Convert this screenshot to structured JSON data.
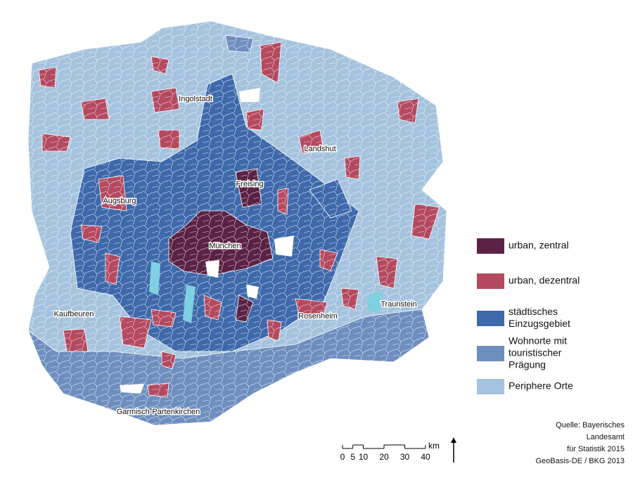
{
  "map": {
    "cities": [
      "Ingolstadt",
      "Landshut",
      "Freising",
      "Augsburg",
      "München",
      "Kaufbeuren",
      "Rosenheim",
      "Traunstein",
      "Garmisch-Partenkirchen"
    ],
    "legend": [
      {
        "lines": [
          "urban, zentral"
        ],
        "color": "#5b2245"
      },
      {
        "lines": [
          "urban, dezentral"
        ],
        "color": "#b4495f"
      },
      {
        "lines": [
          "städtisches",
          "Einzugsgebiet"
        ],
        "color": "#3e69ab"
      },
      {
        "lines": [
          "Wohnorte mit",
          "touristischer",
          "Prägung"
        ],
        "color": "#6e8ebf"
      },
      {
        "lines": [
          "Periphere Orte"
        ],
        "color": "#a5c3de"
      }
    ],
    "scale_bar": {
      "ticks": [
        0,
        5,
        10,
        20,
        30,
        40
      ],
      "unit": "km"
    },
    "source": [
      "Quelle: Bayerisches",
      "Landesamt",
      "für Statistik 2015",
      "GeoBasis-DE / BKG 2013"
    ]
  }
}
